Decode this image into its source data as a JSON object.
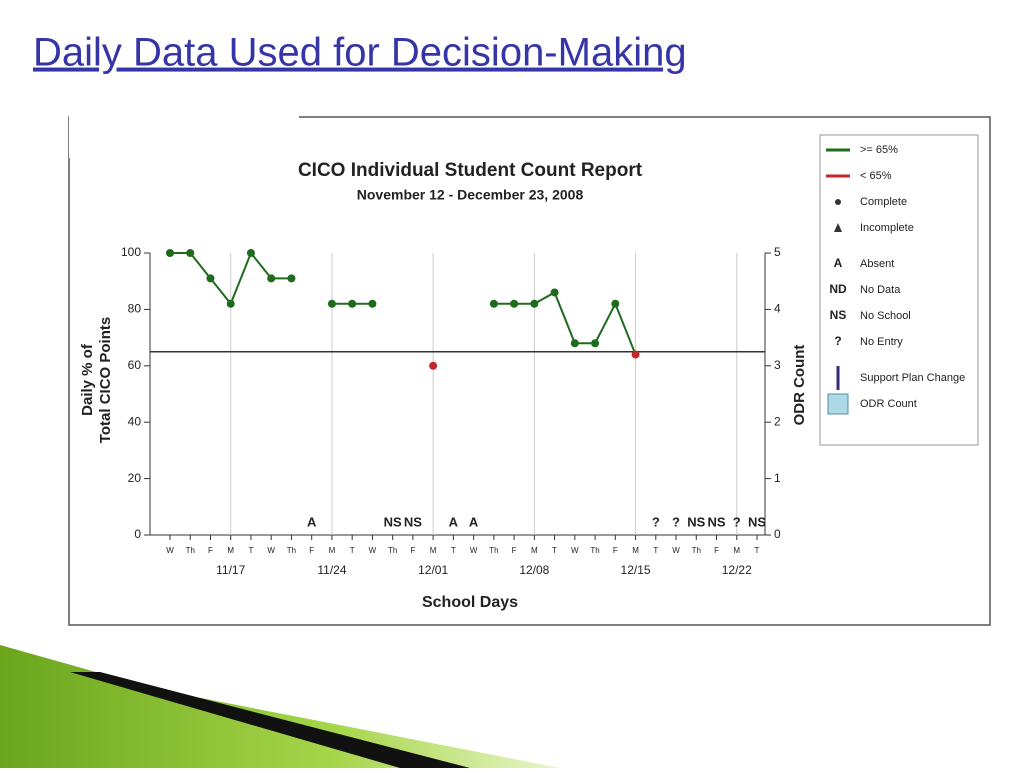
{
  "slide_title": "Daily Data Used for Decision-Making",
  "chart_data": {
    "type": "line",
    "title": "CICO Individual Student Count Report",
    "subtitle": "November 12 - December 23, 2008",
    "y_label": [
      "Daily % of",
      "Total CICO Points"
    ],
    "y2_label": "ODR Count",
    "x_label": "School Days",
    "categories": [
      "W",
      "Th",
      "F",
      "M",
      "T",
      "W",
      "Th",
      "F",
      "M",
      "T",
      "W",
      "Th",
      "F",
      "M",
      "T",
      "W",
      "Th",
      "F",
      "M",
      "T",
      "W",
      "Th",
      "F",
      "M",
      "T",
      "W",
      "Th",
      "F",
      "M",
      "T"
    ],
    "date_labels": [
      null,
      null,
      null,
      "11/17",
      null,
      null,
      null,
      null,
      "11/24",
      null,
      null,
      null,
      null,
      "12/01",
      null,
      null,
      null,
      null,
      "12/08",
      null,
      null,
      null,
      null,
      "12/15",
      null,
      null,
      null,
      null,
      "12/22",
      null
    ],
    "day_codes": [
      null,
      null,
      null,
      null,
      null,
      null,
      null,
      "A",
      null,
      null,
      null,
      "NS",
      "NS",
      null,
      "A",
      "A",
      null,
      null,
      null,
      null,
      null,
      null,
      null,
      null,
      "?",
      "?",
      "NS",
      "NS",
      "?",
      "NS"
    ],
    "series": [
      {
        "name": "Daily %",
        "color": "#1e6b1e",
        "below_color": "#c0282a",
        "values": [
          100,
          100,
          91,
          82,
          100,
          91,
          91,
          null,
          82,
          82,
          82,
          null,
          null,
          60,
          null,
          null,
          82,
          82,
          82,
          86,
          68,
          68,
          82,
          64,
          null,
          null,
          null,
          null,
          null,
          null
        ]
      }
    ],
    "threshold": 65,
    "ylim": [
      0,
      100
    ],
    "yticks": [
      0,
      20,
      40,
      60,
      80,
      100
    ],
    "y2lim": [
      0,
      5
    ],
    "y2ticks": [
      0,
      1,
      2,
      3,
      4,
      5
    ],
    "legend": [
      {
        "label": ">= 65%",
        "marker": "line",
        "color": "#1e6b1e"
      },
      {
        "label": "< 65%",
        "marker": "line",
        "color": "#c0282a"
      },
      {
        "label": "Complete",
        "marker": "circle",
        "color": "#333333"
      },
      {
        "label": "Incomplete",
        "marker": "triangle",
        "color": "#333333"
      },
      {
        "symbol": "A",
        "label": "Absent"
      },
      {
        "symbol": "ND",
        "label": "No Data"
      },
      {
        "symbol": "NS",
        "label": "No School"
      },
      {
        "symbol": "?",
        "label": "No Entry"
      },
      {
        "label": "Support Plan Change",
        "marker": "vbar",
        "color": "#3a2a7a"
      },
      {
        "label": "ODR Count",
        "marker": "box",
        "color": "#add8e6"
      }
    ]
  }
}
